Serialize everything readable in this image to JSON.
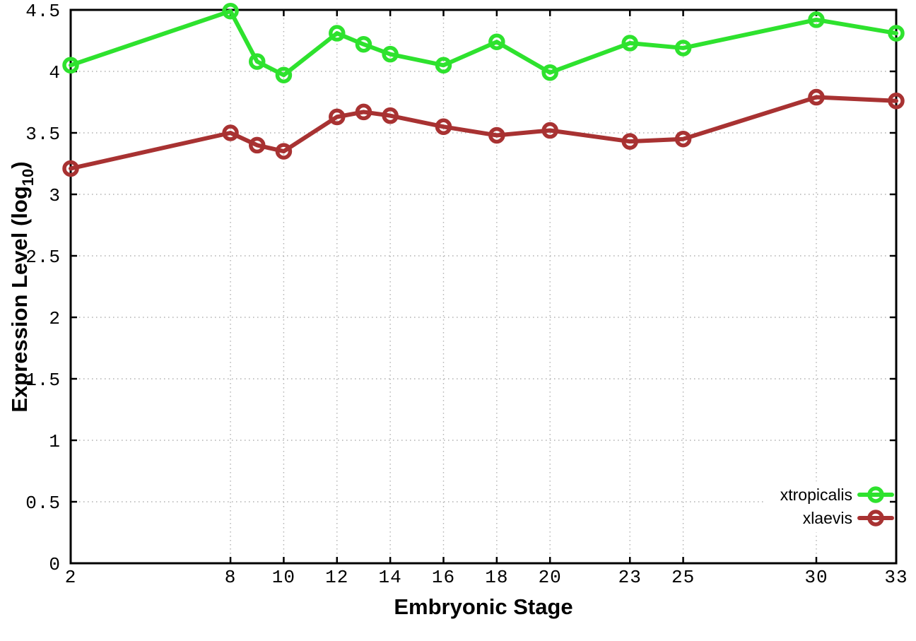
{
  "chart_data": {
    "type": "line",
    "title": "",
    "xlabel": "Embryonic Stage",
    "ylabel": "Expression Level (log10)",
    "ylabel_parts": {
      "prefix": "Expression Level (log",
      "subscript": "10",
      "suffix": ")"
    },
    "x_axis_name": "Embryonic Stage",
    "x": [
      2,
      8,
      9,
      10,
      12,
      13,
      14,
      16,
      18,
      20,
      23,
      25,
      30,
      33
    ],
    "x_ticks": [
      2,
      8,
      10,
      12,
      14,
      16,
      18,
      20,
      23,
      25,
      30,
      33
    ],
    "x_tick_labels": [
      "2",
      "8",
      "10",
      "12",
      "14",
      "16",
      "18",
      "20",
      "23",
      "25",
      "30",
      "33"
    ],
    "y_ticks": [
      0,
      0.5,
      1,
      1.5,
      2,
      2.5,
      3,
      3.5,
      4,
      4.5
    ],
    "y_tick_labels": [
      "0",
      "0.5",
      "1",
      "1.5",
      "2",
      "2.5",
      "3",
      "3.5",
      "4",
      "4.5"
    ],
    "xlim": [
      2,
      33
    ],
    "ylim": [
      0,
      4.5
    ],
    "grid": true,
    "grid_style": "dotted",
    "legend_position": "bottom-right-inside",
    "series": [
      {
        "name": "xtropicalis",
        "color": "#2ee22e",
        "marker": "open-circle",
        "values": [
          4.05,
          4.49,
          4.08,
          3.97,
          4.31,
          4.22,
          4.14,
          4.05,
          4.24,
          3.99,
          4.23,
          4.19,
          4.42,
          4.31
        ]
      },
      {
        "name": "xlaevis",
        "color": "#a83232",
        "marker": "open-circle",
        "values": [
          3.21,
          3.5,
          3.4,
          3.35,
          3.63,
          3.67,
          3.64,
          3.55,
          3.48,
          3.52,
          3.43,
          3.45,
          3.79,
          3.76
        ]
      }
    ],
    "colors": {
      "background": "#ffffff",
      "axis": "#000000",
      "grid": "#b0b0b0",
      "xtropicalis": "#2ee22e",
      "xlaevis": "#a83232"
    }
  }
}
